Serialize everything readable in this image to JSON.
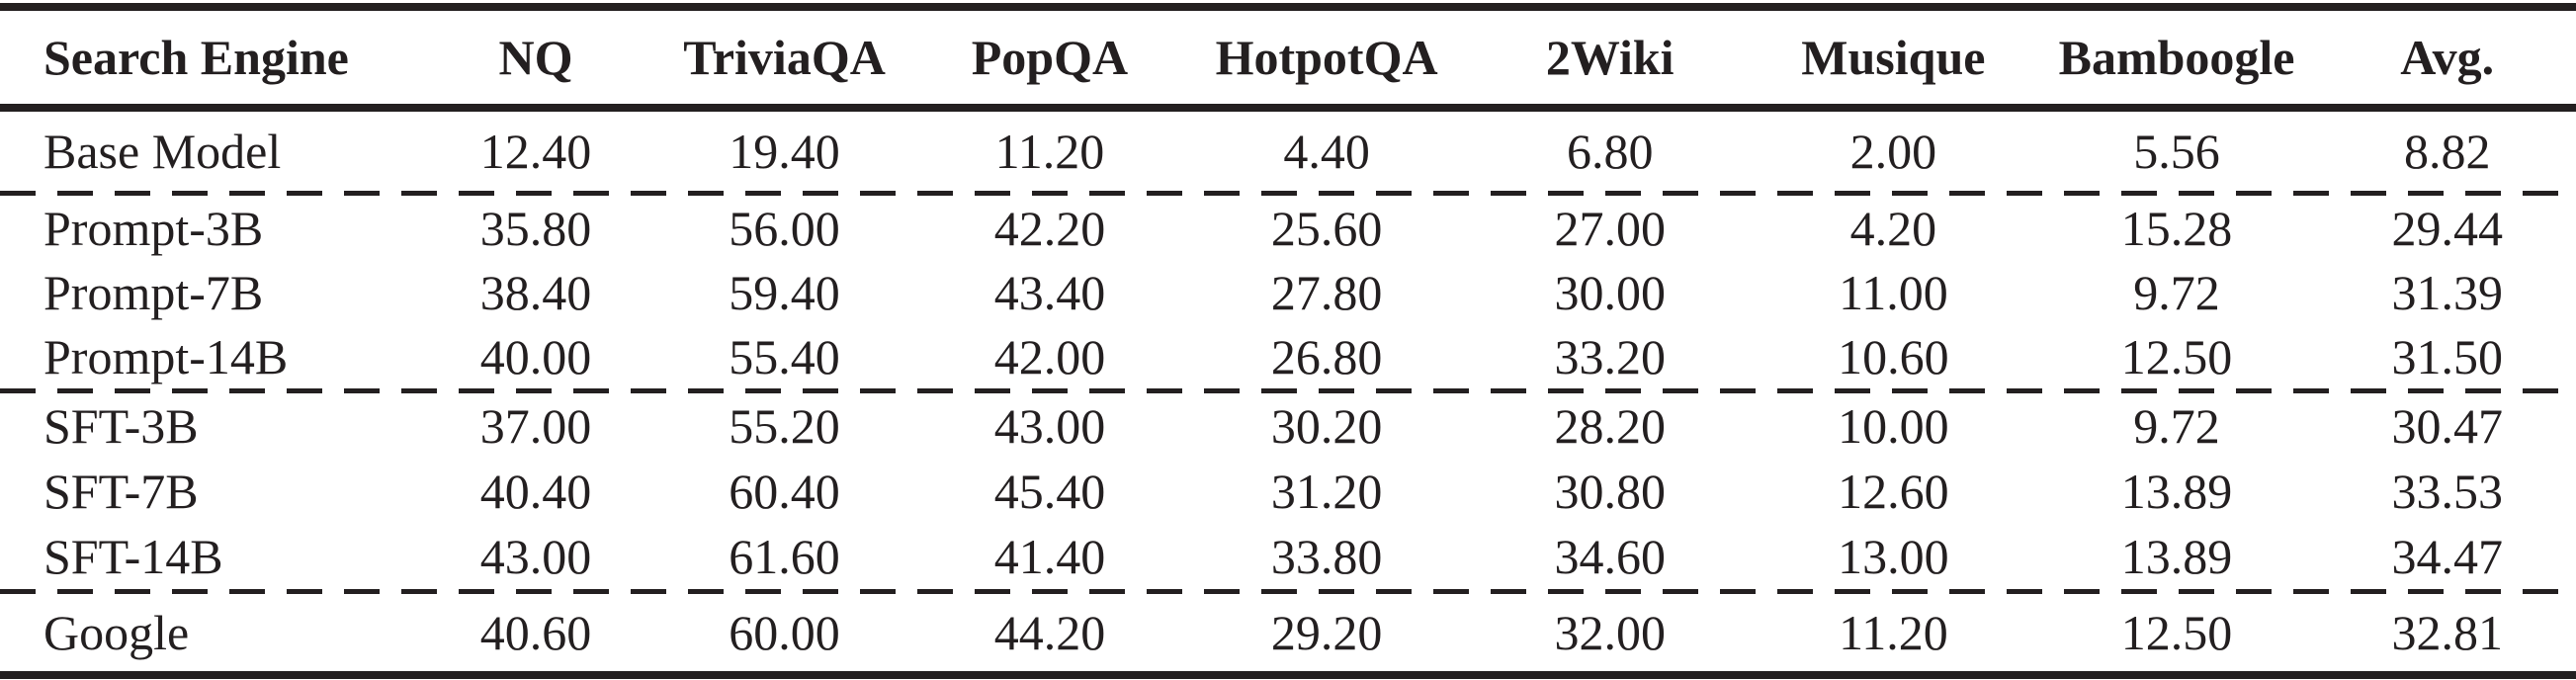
{
  "colors": {
    "ink": "#231f20",
    "background": "#ffffff"
  },
  "table": {
    "columns": [
      "Search Engine",
      "NQ",
      "TriviaQA",
      "PopQA",
      "HotpotQA",
      "2Wiki",
      "Musique",
      "Bamboogle",
      "Avg."
    ],
    "column_widths_pct": [
      16.2,
      9.2,
      10.1,
      10.5,
      11.0,
      11.0,
      11.0,
      11.0,
      10.0
    ],
    "groups": [
      {
        "name": "base",
        "rows": [
          {
            "label": "Base Model",
            "values": [
              "12.40",
              "19.40",
              "11.20",
              "4.40",
              "6.80",
              "2.00",
              "5.56",
              "8.82"
            ]
          }
        ]
      },
      {
        "name": "prompt",
        "rows": [
          {
            "label": "Prompt-3B",
            "values": [
              "35.80",
              "56.00",
              "42.20",
              "25.60",
              "27.00",
              "4.20",
              "15.28",
              "29.44"
            ]
          },
          {
            "label": "Prompt-7B",
            "values": [
              "38.40",
              "59.40",
              "43.40",
              "27.80",
              "30.00",
              "11.00",
              "9.72",
              "31.39"
            ]
          },
          {
            "label": "Prompt-14B",
            "values": [
              "40.00",
              "55.40",
              "42.00",
              "26.80",
              "33.20",
              "10.60",
              "12.50",
              "31.50"
            ]
          }
        ]
      },
      {
        "name": "sft",
        "rows": [
          {
            "label": "SFT-3B",
            "values": [
              "37.00",
              "55.20",
              "43.00",
              "30.20",
              "28.20",
              "10.00",
              "9.72",
              "30.47"
            ]
          },
          {
            "label": "SFT-7B",
            "values": [
              "40.40",
              "60.40",
              "45.40",
              "31.20",
              "30.80",
              "12.60",
              "13.89",
              "33.53"
            ]
          },
          {
            "label": "SFT-14B",
            "values": [
              "43.00",
              "61.60",
              "41.40",
              "33.80",
              "34.60",
              "13.00",
              "13.89",
              "34.47"
            ]
          }
        ]
      },
      {
        "name": "google",
        "rows": [
          {
            "label": "Google",
            "values": [
              "40.60",
              "60.00",
              "44.20",
              "29.20",
              "32.00",
              "11.20",
              "12.50",
              "32.81"
            ]
          }
        ]
      }
    ]
  }
}
